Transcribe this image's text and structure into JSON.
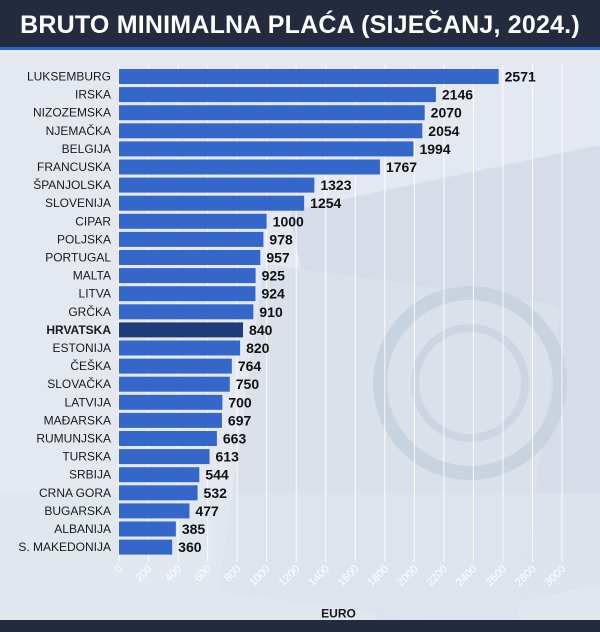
{
  "header": {
    "title": "BRUTO MINIMALNA PLAĆA (SIJEČANJ, 2024.)"
  },
  "chart_data": {
    "type": "bar",
    "orientation": "horizontal",
    "title": "BRUTO MINIMALNA PLAĆA (SIJEČANJ, 2024.)",
    "xlabel": "EURO",
    "ylabel": "",
    "xlim": [
      0,
      3000
    ],
    "x_ticks": [
      "0",
      "200",
      "400",
      "600",
      "800",
      "1000",
      "1200",
      "1400",
      "1600",
      "1800",
      "2000",
      "2200",
      "2400",
      "2600",
      "2800",
      "3000"
    ],
    "grid": true,
    "highlight": "HRVATSKA",
    "colors": {
      "bar": "#3566c9",
      "highlight": "#1f3c7a",
      "label": "#111111"
    },
    "categories": [
      "LUKSEMBURG",
      "IRSKA",
      "NIZOZEMSKA",
      "NJEMAČKA",
      "BELGIJA",
      "FRANCUSKA",
      "ŠPANJOLSKA",
      "SLOVENIJA",
      "CIPAR",
      "POLJSKA",
      "PORTUGAL",
      "MALTA",
      "LITVA",
      "GRČKA",
      "HRVATSKA",
      "ESTONIJA",
      "ČEŠKA",
      "SLOVAČKA",
      "LATVIJA",
      "MAĐARSKA",
      "RUMUNJSKA",
      "TURSKA",
      "SRBIJA",
      "CRNA GORA",
      "BUGARSKA",
      "ALBANIJA",
      "S. MAKEDONIJA"
    ],
    "values": [
      2571,
      2146,
      2070,
      2054,
      1994,
      1767,
      1323,
      1254,
      1000,
      978,
      957,
      925,
      924,
      910,
      840,
      820,
      764,
      750,
      700,
      697,
      663,
      613,
      544,
      532,
      477,
      385,
      360
    ]
  }
}
